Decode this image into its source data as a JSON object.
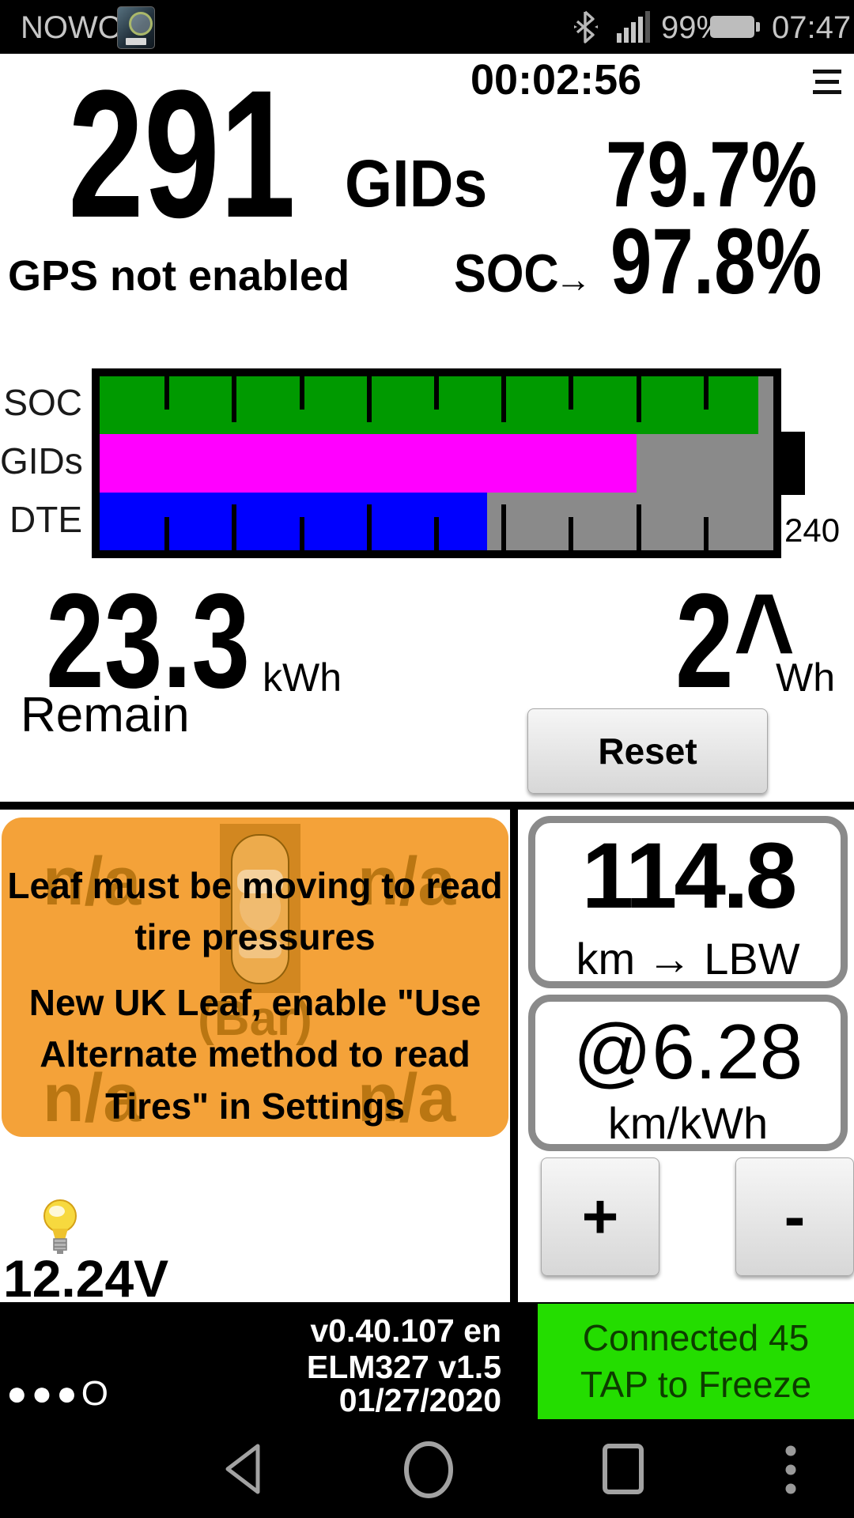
{
  "status_bar": {
    "carrier": "NOWO",
    "signal_pct": "99%",
    "time": "07:47"
  },
  "header": {
    "timer": "00:02:56"
  },
  "top_metrics": {
    "gids_value": "291",
    "gids_label": "GIDs",
    "gids_percent": "79.7%",
    "gps_status": "GPS not enabled",
    "soc_label": "SOC",
    "soc_arrow": "→",
    "soc_value": "97.8%"
  },
  "battery_chart": {
    "chart_data": {
      "type": "bar",
      "orientation": "horizontal",
      "categories": [
        "SOC",
        "GIDs",
        "DTE"
      ],
      "series": [
        {
          "name": "SOC",
          "percent": 97.8,
          "color": "#009a00"
        },
        {
          "name": "GIDs",
          "percent": 79.7,
          "color": "#ff00ff"
        },
        {
          "name": "DTE",
          "percent": 57.5,
          "color": "#0000ff"
        }
      ],
      "scale_max_label": "240",
      "background": "#8a8a8a",
      "ticks_every_percent": 10,
      "grid": false,
      "legend": "left-row-labels"
    }
  },
  "energy": {
    "remain_value": "23.3",
    "remain_unit": "kWh",
    "remain_label": "Remain",
    "wh_value": "2^",
    "wh_unit": "Wh",
    "reset_label": "Reset"
  },
  "tires_panel": {
    "na": [
      "n/a",
      "n/a",
      "n/a",
      "n/a"
    ],
    "unit_label": "(Bar)",
    "message1": "Leaf must be moving to read tire pressures",
    "message2": "New UK Leaf, enable \"Use Alternate method to read Tires\" in Settings"
  },
  "range_card": {
    "value": "114.8",
    "unit": "km → LBW"
  },
  "efficiency_card": {
    "value": "@6.28",
    "unit": "km/kWh"
  },
  "adjust": {
    "plus": "+",
    "minus": "-"
  },
  "aux_battery": {
    "voltage": "12.24V"
  },
  "footer": {
    "dots": "●●●O",
    "version": "v0.40.107 en",
    "adapter": "ELM327 v1.5",
    "date": "01/27/2020",
    "connection_line1": "Connected 45",
    "connection_line2": "TAP to Freeze"
  }
}
